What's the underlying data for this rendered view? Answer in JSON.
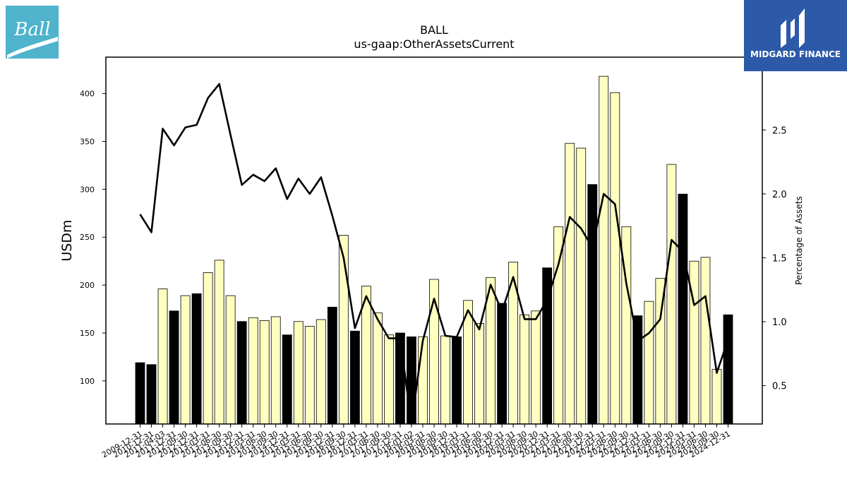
{
  "logos": {
    "left": {
      "text": "Ball",
      "color": "#4fb3cc"
    },
    "right": {
      "text": "MIDGARD FINANCE",
      "color": "#2d5aa8"
    }
  },
  "chart_data": {
    "type": "bar",
    "title": "BALL",
    "subtitle": "us-gaap:OtherAssetsCurrent",
    "ylabel": "USDm",
    "y2label": "Percentage of Assets",
    "ylim": [
      55,
      438
    ],
    "y2lim": [
      0.2,
      3.07
    ],
    "yticks": [
      100,
      150,
      200,
      250,
      300,
      350,
      400
    ],
    "y2ticks": [
      0.5,
      1.0,
      1.5,
      2.0,
      2.5
    ],
    "grid": false,
    "bar_colors": {
      "year_end": "#000000",
      "quarter": "#ffffc0"
    },
    "line_color": "#000000",
    "categories": [
      "2009-12-31",
      "2010-12-31",
      "2011-04-03",
      "2011-12-31",
      "2012-09-30",
      "2012-12-31",
      "2013-03-31",
      "2013-06-30",
      "2013-09-30",
      "2013-12-31",
      "2014-03-31",
      "2014-06-30",
      "2014-09-30",
      "2014-12-31",
      "2015-03-31",
      "2015-06-30",
      "2015-09-30",
      "2015-12-31",
      "2016-09-30",
      "2016-12-31",
      "2017-03-31",
      "2017-06-30",
      "2017-09-30",
      "2017-12-31",
      "2018-01-02",
      "2018-03-31",
      "2018-06-30",
      "2018-09-30",
      "2018-12-31",
      "2019-03-31",
      "2019-06-30",
      "2019-09-30",
      "2019-12-31",
      "2020-03-31",
      "2020-06-30",
      "2020-09-30",
      "2020-12-31",
      "2021-03-31",
      "2021-06-30",
      "2021-09-30",
      "2021-12-31",
      "2022-03-31",
      "2022-06-30",
      "2022-09-30",
      "2022-12-31",
      "2023-03-31",
      "2023-06-30",
      "2023-09-30",
      "2023-12-31",
      "2024-03-31",
      "2024-06-30",
      "2024-09-30",
      "2024-12-31"
    ],
    "x_tick_labels": [
      "2009-12-31",
      "2010-12-31",
      "2011-04-03",
      "2011-12-31",
      "2012-09-30",
      "2012-12-31",
      "2013-03-31",
      "2013-06-30",
      "2013-09-30",
      "2013-12-31",
      "2014-03-31",
      "2014-06-30",
      "2014-09-30",
      "2014-12-31",
      "2015-03-31",
      "2015-06-30",
      "2015-09-30",
      "2015-12-31",
      "2016-09-30",
      "2016-12-31",
      "2017-03-31",
      "2017-06-30",
      "2017-09-30",
      "2017-12-31",
      "2018-01-02",
      "2018-03-31",
      "2018-06-30",
      "2018-09-30",
      "2018-12-31",
      "2019-03-31",
      "2019-06-30",
      "2019-09-30",
      "2019-12-31",
      "2020-03-31",
      "2020-06-30",
      "2020-09-30",
      "2020-12-31",
      "2021-03-31",
      "2021-06-30",
      "2021-09-30",
      "2021-12-31",
      "2022-03-31",
      "2022-06-30",
      "2022-09-30",
      "2022-12-31",
      "2023-03-31",
      "2023-06-30",
      "2023-09-30",
      "2023-12-31",
      "2024-03-31",
      "2024-06-30",
      "2024-09-30",
      "2024-12-31"
    ],
    "values": [
      119,
      117,
      196,
      173,
      189,
      191,
      213,
      226,
      189,
      162,
      166,
      163,
      167,
      148,
      162,
      157,
      164,
      177,
      252,
      152,
      199,
      171,
      148,
      150,
      146,
      146,
      206,
      147,
      146,
      184,
      160,
      208,
      181,
      224,
      169,
      173,
      218,
      261,
      348,
      343,
      305,
      418,
      401,
      261,
      168,
      183,
      207,
      326,
      295,
      225,
      229,
      112,
      169
    ],
    "year_end": [
      1,
      1,
      0,
      1,
      0,
      1,
      0,
      0,
      0,
      1,
      0,
      0,
      0,
      1,
      0,
      0,
      0,
      1,
      0,
      1,
      0,
      0,
      0,
      1,
      1,
      0,
      0,
      0,
      1,
      0,
      0,
      0,
      1,
      0,
      0,
      0,
      1,
      0,
      0,
      0,
      1,
      0,
      0,
      0,
      1,
      0,
      0,
      0,
      1,
      0,
      0,
      0,
      1
    ],
    "pct_of_assets": [
      1.84,
      1.7,
      2.51,
      2.38,
      2.52,
      2.54,
      2.75,
      2.86,
      2.46,
      2.07,
      2.15,
      2.1,
      2.2,
      1.96,
      2.12,
      2.0,
      2.13,
      1.83,
      1.5,
      0.95,
      1.2,
      1.02,
      0.87,
      0.87,
      0.2,
      0.85,
      1.18,
      0.89,
      0.88,
      1.09,
      0.94,
      1.29,
      1.08,
      1.35,
      1.02,
      1.02,
      1.17,
      1.45,
      1.82,
      1.73,
      1.58,
      2.0,
      1.92,
      1.3,
      0.85,
      0.91,
      1.02,
      1.64,
      1.55,
      1.13,
      1.2,
      0.6,
      0.86
    ]
  }
}
